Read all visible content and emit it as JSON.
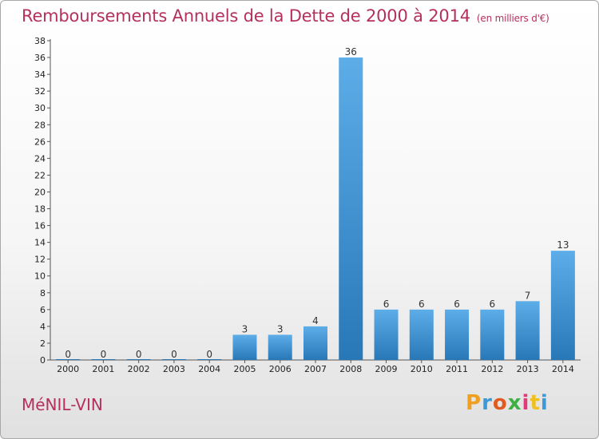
{
  "title": "Remboursements Annuels de la Dette de 2000 à 2014",
  "unit": "(en milliers d'€)",
  "commune": "MéNIL-VIN",
  "logo": {
    "letters": [
      "P",
      "r",
      "o",
      "x",
      "i",
      "t",
      "i"
    ],
    "colors": [
      "#f0a020",
      "#3a9ad9",
      "#e05a20",
      "#3cb043",
      "#e03a7a",
      "#f0c020",
      "#3a9ad9"
    ]
  },
  "colors": {
    "title": "#b5305f",
    "bar_light": "#5dade9",
    "bar_dark": "#2878b8"
  },
  "chart_data": {
    "type": "bar",
    "categories": [
      "2000",
      "2001",
      "2002",
      "2003",
      "2004",
      "2005",
      "2006",
      "2007",
      "2008",
      "2009",
      "2010",
      "2011",
      "2012",
      "2013",
      "2014"
    ],
    "values": [
      0,
      0,
      0,
      0,
      0,
      3,
      3,
      4,
      36,
      6,
      6,
      6,
      6,
      7,
      13
    ],
    "ylim": [
      0,
      38
    ],
    "yticks": [
      0,
      2,
      4,
      6,
      8,
      10,
      12,
      14,
      16,
      18,
      20,
      22,
      24,
      26,
      28,
      30,
      32,
      34,
      36,
      38
    ],
    "grid": false,
    "legend": "none"
  }
}
